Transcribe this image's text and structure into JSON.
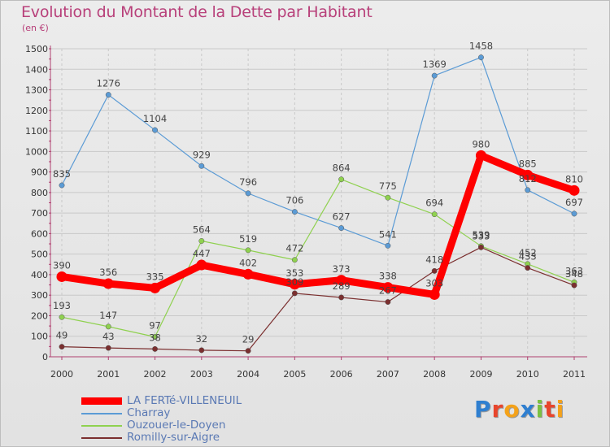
{
  "chart_data": {
    "type": "line",
    "title": "Evolution du Montant de la Dette par Habitant",
    "subtitle": "(en €)",
    "xlabel": "",
    "ylabel": "",
    "categories": [
      "2000",
      "2001",
      "2002",
      "2003",
      "2004",
      "2005",
      "2006",
      "2007",
      "2008",
      "2009",
      "2010",
      "2011"
    ],
    "ylim": [
      0,
      1500
    ],
    "yticks": [
      "0",
      "100",
      "200",
      "300",
      "400",
      "500",
      "600",
      "700",
      "800",
      "900",
      "1000",
      "1100",
      "1200",
      "1300",
      "1400",
      "1500"
    ],
    "grid": true,
    "legend_position": "bottom-left",
    "series": [
      {
        "name": "LA FERTé-VILLENEUIL",
        "color": "#ff0000",
        "values": [
          390,
          356,
          335,
          447,
          402,
          353,
          373,
          338,
          303,
          980,
          885,
          810
        ],
        "labels": [
          "390",
          "356",
          "335",
          "447",
          "402",
          "353",
          "373",
          "338",
          "303",
          "980",
          "885",
          "810"
        ]
      },
      {
        "name": "Charray",
        "color": "#5b9bd5",
        "values": [
          835,
          1276,
          1104,
          929,
          796,
          706,
          627,
          541,
          1369,
          1458,
          812,
          697
        ],
        "labels": [
          "835",
          "1276",
          "1104",
          "929",
          "796",
          "706",
          "627",
          "541",
          "1369",
          "1458",
          "812",
          "697"
        ]
      },
      {
        "name": "Ouzouer-le-Doyen",
        "color": "#8fd14f",
        "values": [
          193,
          147,
          97,
          564,
          519,
          472,
          864,
          775,
          694,
          539,
          452,
          363
        ],
        "labels": [
          "193",
          "147",
          "97",
          "564",
          "519",
          "472",
          "864",
          "775",
          "694",
          "539",
          "452",
          "363"
        ]
      },
      {
        "name": "Romilly-sur-Aigre",
        "color": "#7b2f2f",
        "values": [
          49,
          43,
          38,
          32,
          29,
          309,
          289,
          267,
          418,
          533,
          433,
          348
        ],
        "labels": [
          "49",
          "43",
          "38",
          "32",
          "29",
          "309",
          "289",
          "267",
          "418",
          "533",
          "433",
          "348"
        ]
      }
    ]
  },
  "legend": {
    "items": [
      {
        "label": "LA FERTé-VILLENEUIL",
        "color": "#ff0000"
      },
      {
        "label": "Charray",
        "color": "#5b9bd5"
      },
      {
        "label": "Ouzouer-le-Doyen",
        "color": "#8fd14f"
      },
      {
        "label": "Romilly-sur-Aigre",
        "color": "#7b2f2f"
      }
    ]
  },
  "logo": {
    "text": "Proxiti",
    "letters": [
      {
        "ch": "P",
        "color": "#2f7fd0"
      },
      {
        "ch": "r",
        "color": "#e8452c"
      },
      {
        "ch": "o",
        "color": "#f4a21a"
      },
      {
        "ch": "x",
        "color": "#2f7fd0"
      },
      {
        "ch": "i",
        "color": "#7bc142"
      },
      {
        "ch": "t",
        "color": "#e8452c"
      },
      {
        "ch": "i",
        "color": "#f4a21a"
      }
    ]
  }
}
